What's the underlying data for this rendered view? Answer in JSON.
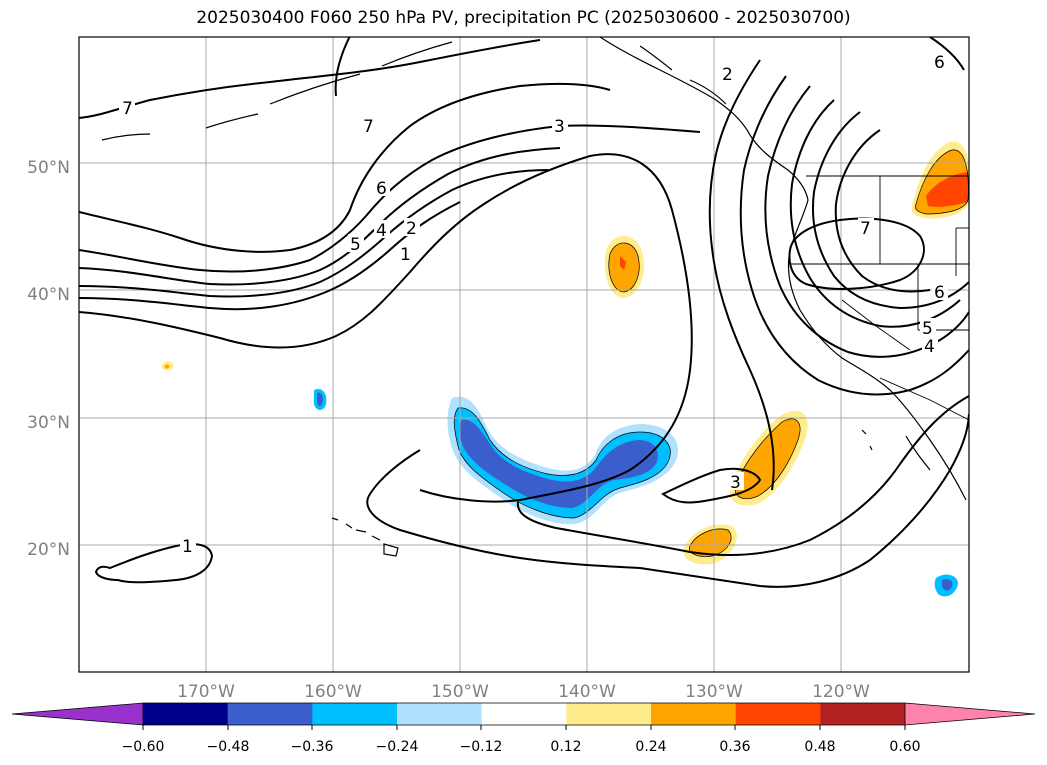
{
  "title": "2025030400 F060 250 hPa PV, precipitation PC (2025030600 - 2025030700)",
  "map": {
    "projection": "PlateCarree",
    "lon_range": [
      -180,
      -110
    ],
    "lat_range": [
      10,
      60
    ],
    "lat_labels": [
      "20°N",
      "30°N",
      "40°N",
      "50°N"
    ],
    "lon_labels": [
      "170°W",
      "160°W",
      "150°W",
      "140°W",
      "130°W",
      "120°W"
    ],
    "grid": true,
    "contour_labels": [
      "7",
      "7",
      "6",
      "5",
      "4",
      "2",
      "1",
      "3",
      "2",
      "7",
      "6",
      "5",
      "4",
      "3",
      "1",
      "6"
    ]
  },
  "colorbar": {
    "ticks": [
      "−0.60",
      "−0.48",
      "−0.36",
      "−0.24",
      "−0.12",
      "0.12",
      "0.24",
      "0.36",
      "0.48",
      "0.60"
    ],
    "colors": [
      "#9932cc",
      "#00008b",
      "#3a5fcd",
      "#00bfff",
      "#b0e2ff",
      "#ffffff",
      "#ffec8b",
      "#ffa500",
      "#ff4500",
      "#b22222",
      "#ff82ab"
    ],
    "extend": "both"
  }
}
